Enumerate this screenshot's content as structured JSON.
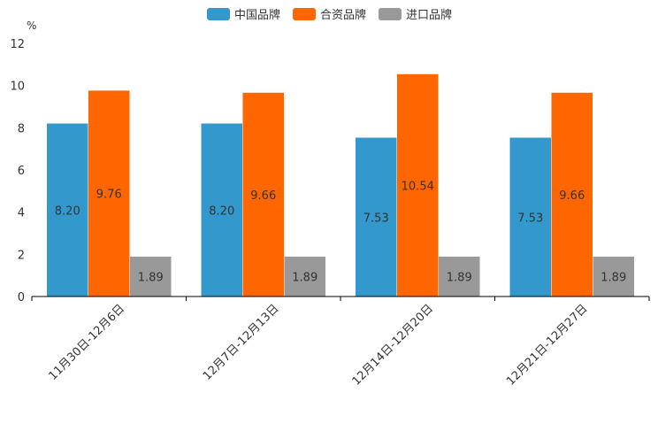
{
  "chart_data": {
    "type": "bar",
    "title": "",
    "unit_label": "%",
    "xlabel": "",
    "ylabel": "%",
    "ylim": [
      0,
      12
    ],
    "yticks": [
      0,
      2,
      4,
      6,
      8,
      10,
      12
    ],
    "categories": [
      "11月30日-12月6日",
      "12月7日-12月13日",
      "12月14日-12月20日",
      "12月21日-12月27日"
    ],
    "series": [
      {
        "name": "中国品牌",
        "color": "#3399cc",
        "values": [
          8.2,
          8.2,
          7.53,
          7.53
        ],
        "labels": [
          "8.20",
          "8.20",
          "7.53",
          "7.53"
        ]
      },
      {
        "name": "合资品牌",
        "color": "#ff6600",
        "values": [
          9.76,
          9.66,
          10.54,
          9.66
        ],
        "labels": [
          "9.76",
          "9.66",
          "10.54",
          "9.66"
        ]
      },
      {
        "name": "进口品牌",
        "color": "#999999",
        "values": [
          1.89,
          1.89,
          1.89,
          1.89
        ],
        "labels": [
          "1.89",
          "1.89",
          "1.89",
          "1.89"
        ]
      }
    ],
    "legend_position": "top-center",
    "grid": false
  }
}
